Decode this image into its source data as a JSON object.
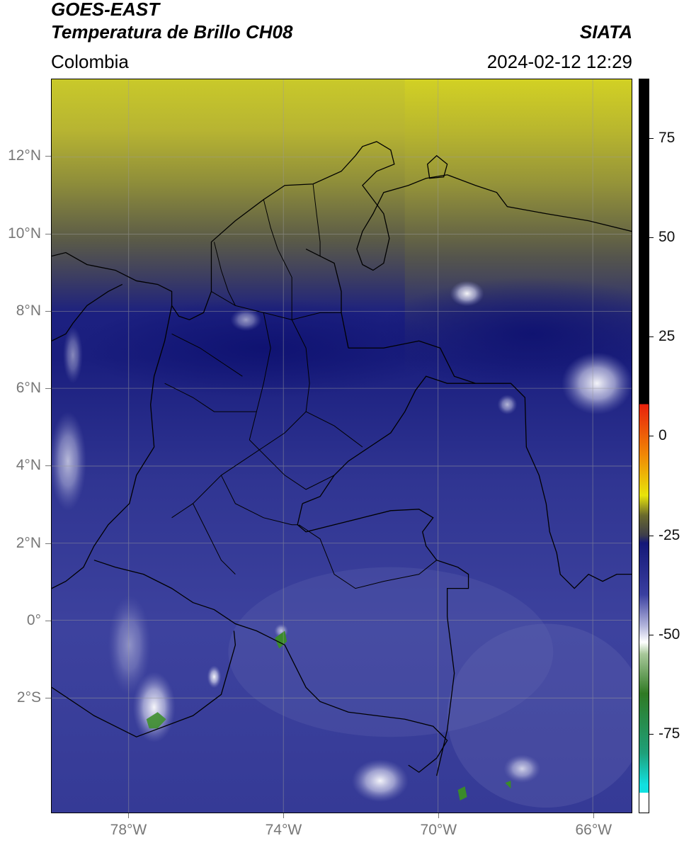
{
  "header": {
    "satellite": "GOES-EAST",
    "product": "Temperatura de Brillo CH08",
    "region": "Colombia",
    "agency": "SIATA",
    "datetime": "2024-02-12 12:29"
  },
  "map": {
    "latitude_ticks": [
      "12°N",
      "10°N",
      "8°N",
      "6°N",
      "4°N",
      "2°N",
      "0°",
      "2°S"
    ],
    "longitude_ticks": [
      "78°W",
      "74°W",
      "70°W",
      "66°W"
    ],
    "extent": {
      "lon_min": -80.0,
      "lon_max": -65.0,
      "lat_min": -4.98,
      "lat_max": 14.0
    },
    "gridlines": true
  },
  "colorbar": {
    "labels": [
      "75",
      "50",
      "25",
      "0",
      "-25",
      "-50",
      "-75"
    ],
    "range": [
      -95,
      90
    ],
    "colors": {
      "warm_black": "#000000",
      "red": "#e8200b",
      "orange": "#f08a05",
      "yellow": "#e8e40a",
      "olive": "#6a6a2c",
      "dark_gray": "#3e3e4a",
      "navy": "#141878",
      "blue": "#3a3fa0",
      "lavender": "#b4b6dc",
      "white": "#ffffff",
      "green_light": "#a8c89a",
      "green": "#2f7a23",
      "teal": "#1ea07a",
      "cyan": "#12e0e0"
    }
  }
}
